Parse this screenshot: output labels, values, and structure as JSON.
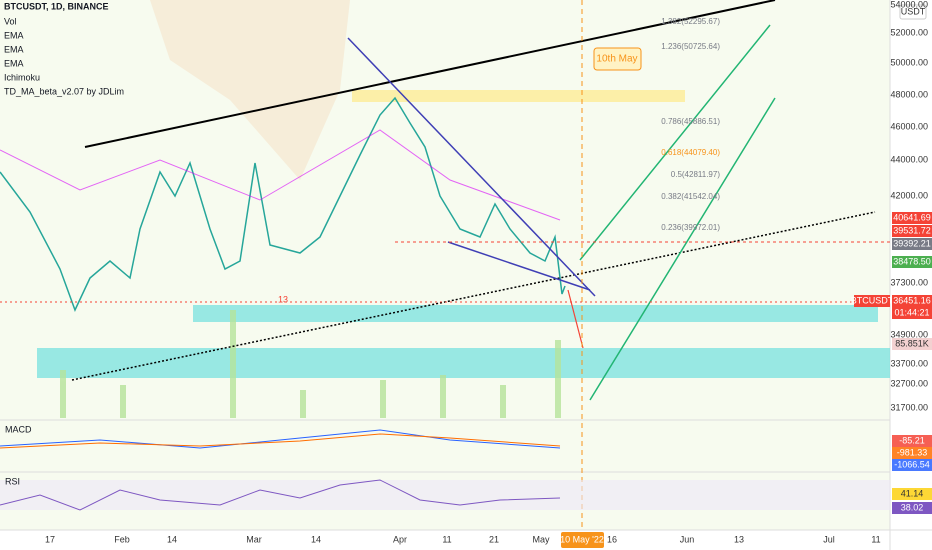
{
  "header": {
    "symbol": "BTCUSDT, 1D, BINANCE",
    "indicators": [
      "Vol",
      "EMA",
      "EMA",
      "EMA",
      "Ichimoku",
      "TD_MA_beta_v2.07 by JDLim"
    ]
  },
  "price_axis": {
    "unit": "USDT",
    "labels": [
      "54000.00",
      "52000.00",
      "50000.00",
      "48000.00",
      "46000.00",
      "44000.00",
      "42000.00",
      "37300.00",
      "34900.00",
      "33700.00",
      "32700.00",
      "31700.00"
    ]
  },
  "price_tags": [
    "40641.69",
    "39531.72",
    "39392.21",
    "38478.50",
    "BTCUSDT",
    "36451.16",
    "01:44:21",
    "85.851K"
  ],
  "fib_levels": [
    "1.382(52295.67)",
    "1.236(50725.64)",
    "0.786(45886.51)",
    "0.618(44079.40)",
    "0.5(42811.97)",
    "0.382(41542.04)",
    "0.236(39972.01)"
  ],
  "annotations": {
    "callout": "10th May",
    "marker": "13"
  },
  "panels": {
    "macd": {
      "title": "MACD",
      "values": [
        "-85.21",
        "-981.33",
        "-1066.54"
      ]
    },
    "rsi": {
      "title": "RSI",
      "values": [
        "41.14",
        "38.02"
      ]
    }
  },
  "time_axis": {
    "labels": [
      "17",
      "Feb",
      "14",
      "Mar",
      "14",
      "Apr",
      "11",
      "21",
      "May",
      "16",
      "Jun",
      "13",
      "Jul",
      "11"
    ],
    "highlight": "10 May '22"
  }
}
